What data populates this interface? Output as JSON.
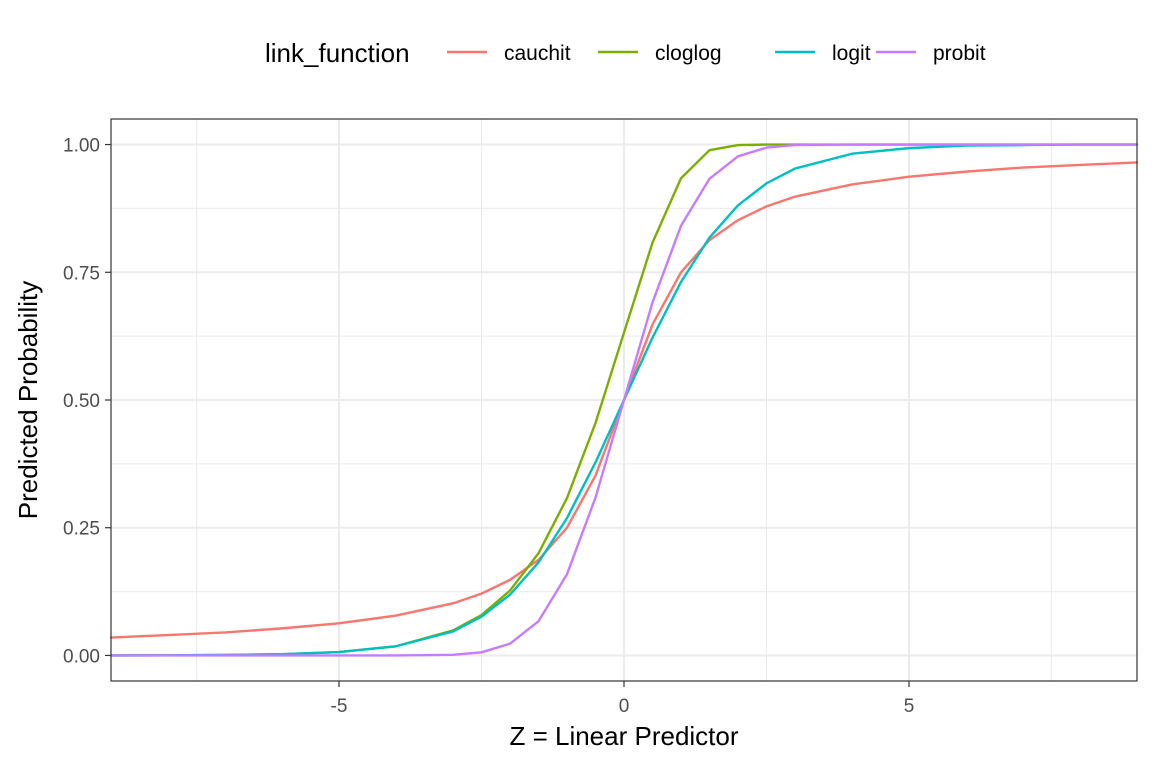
{
  "chart_data": {
    "type": "line",
    "xlabel": "Z = Linear Predictor",
    "ylabel": "Predicted Probability",
    "xlim": [
      -9.0,
      9.0
    ],
    "ylim": [
      0.0,
      1.0
    ],
    "x_ticks": [
      -5,
      0,
      5
    ],
    "x_tick_labels": [
      "-5",
      "0",
      "5"
    ],
    "y_ticks": [
      0.0,
      0.25,
      0.5,
      0.75,
      1.0
    ],
    "y_tick_labels": [
      "0.00",
      "0.25",
      "0.50",
      "0.75",
      "1.00"
    ],
    "grid": true,
    "legend": {
      "title": "link_function",
      "position": "top",
      "entries": [
        "cauchit",
        "cloglog",
        "logit",
        "probit"
      ]
    },
    "series": [
      {
        "name": "cauchit",
        "color": "#F8766D",
        "x": [
          -9,
          -8,
          -7,
          -6,
          -5,
          -4,
          -3,
          -2.5,
          -2,
          -1.5,
          -1,
          -0.5,
          0,
          0.5,
          1,
          1.5,
          2,
          2.5,
          3,
          4,
          5,
          6,
          7,
          8,
          9
        ],
        "y": [
          0.035,
          0.04,
          0.045,
          0.053,
          0.063,
          0.078,
          0.102,
          0.121,
          0.148,
          0.187,
          0.25,
          0.352,
          0.5,
          0.648,
          0.75,
          0.813,
          0.852,
          0.879,
          0.898,
          0.922,
          0.937,
          0.947,
          0.955,
          0.96,
          0.965
        ]
      },
      {
        "name": "cloglog",
        "color": "#7CAE00",
        "x": [
          -9,
          -8,
          -7,
          -6,
          -5,
          -4,
          -3,
          -2.5,
          -2,
          -1.5,
          -1,
          -0.5,
          0,
          0.5,
          1,
          1.5,
          2,
          2.5,
          3,
          4,
          5,
          6,
          7,
          8,
          9
        ],
        "y": [
          0.0001,
          0.0003,
          0.0009,
          0.0025,
          0.0067,
          0.018,
          0.049,
          0.079,
          0.127,
          0.2,
          0.308,
          0.455,
          0.632,
          0.808,
          0.934,
          0.989,
          0.999,
          1.0,
          1.0,
          1.0,
          1.0,
          1.0,
          1.0,
          1.0,
          1.0
        ]
      },
      {
        "name": "logit",
        "color": "#00BFC4",
        "x": [
          -9,
          -8,
          -7,
          -6,
          -5,
          -4,
          -3,
          -2.5,
          -2,
          -1.5,
          -1,
          -0.5,
          0,
          0.5,
          1,
          1.5,
          2,
          2.5,
          3,
          4,
          5,
          6,
          7,
          8,
          9
        ],
        "y": [
          0.0001,
          0.0003,
          0.0009,
          0.0025,
          0.0067,
          0.018,
          0.047,
          0.076,
          0.119,
          0.182,
          0.269,
          0.378,
          0.5,
          0.622,
          0.731,
          0.818,
          0.881,
          0.924,
          0.953,
          0.982,
          0.993,
          0.998,
          0.999,
          1.0,
          1.0
        ]
      },
      {
        "name": "probit",
        "color": "#C77CFF",
        "x": [
          -9,
          -8,
          -7,
          -6,
          -5,
          -4,
          -3,
          -2.5,
          -2,
          -1.5,
          -1,
          -0.5,
          0,
          0.5,
          1,
          1.5,
          2,
          2.5,
          3,
          4,
          5,
          6,
          7,
          8,
          9
        ],
        "y": [
          0.0,
          0.0,
          0.0,
          0.0,
          0.0,
          0.0,
          0.0013,
          0.0062,
          0.023,
          0.067,
          0.159,
          0.309,
          0.5,
          0.691,
          0.841,
          0.933,
          0.977,
          0.994,
          0.999,
          1.0,
          1.0,
          1.0,
          1.0,
          1.0,
          1.0
        ]
      }
    ]
  }
}
